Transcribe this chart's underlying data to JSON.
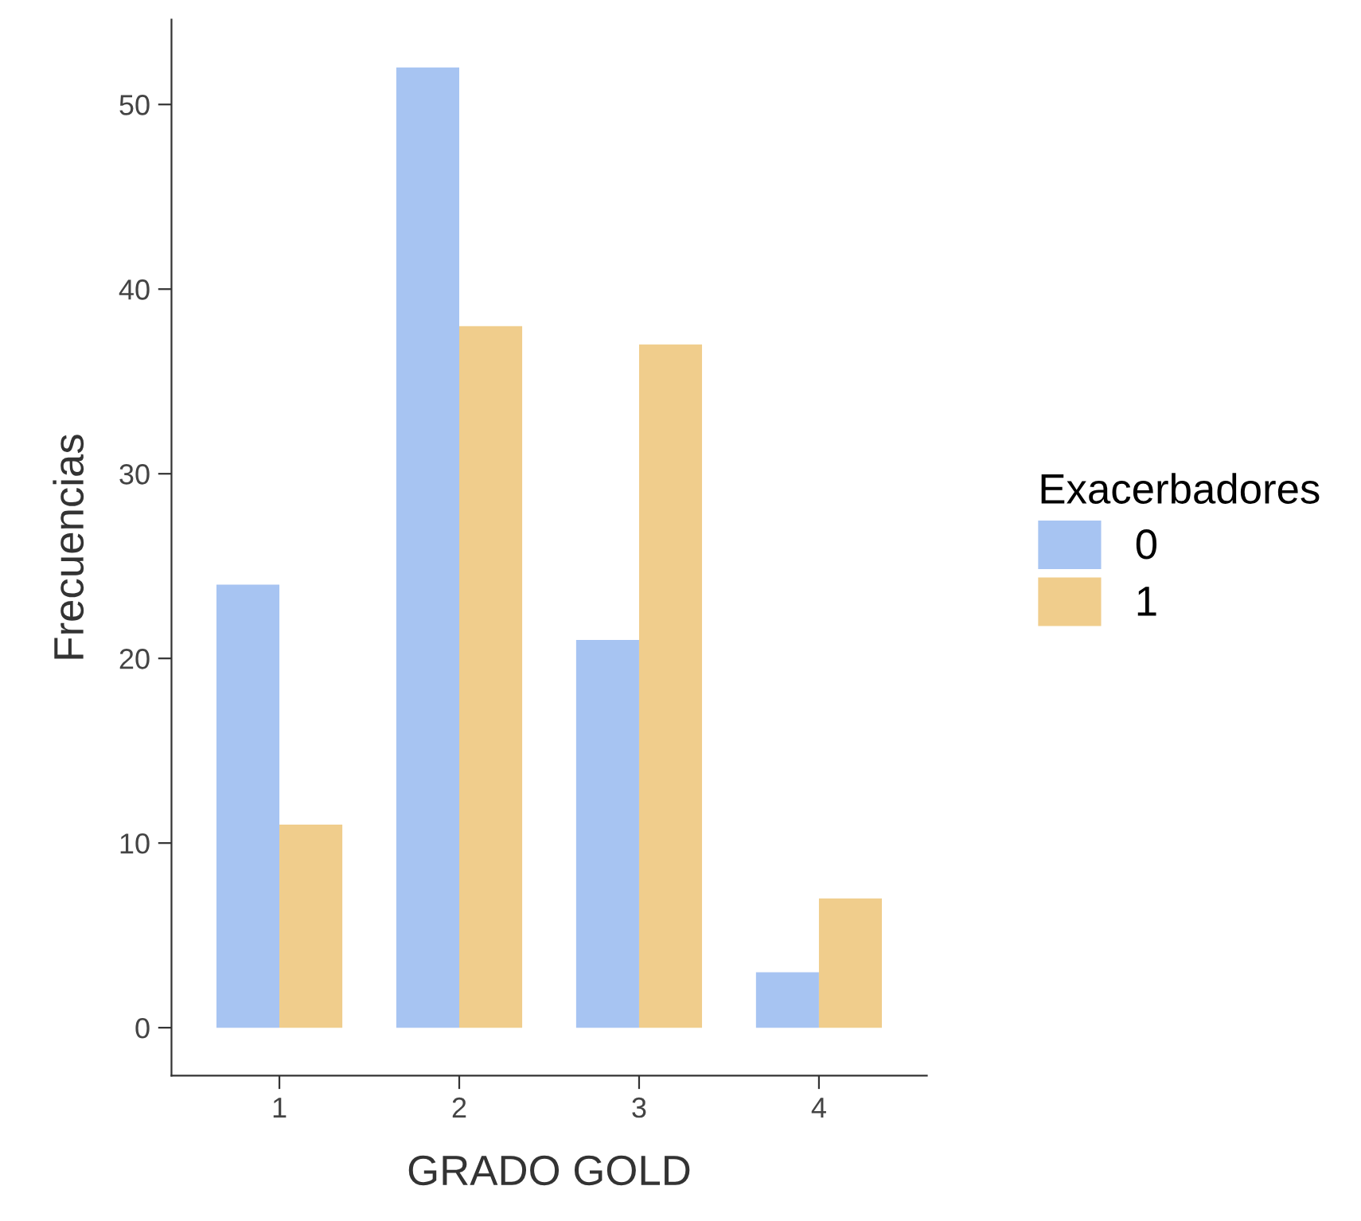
{
  "chart_data": {
    "type": "bar",
    "xlabel": "GRADO GOLD",
    "ylabel": "Frecuencias",
    "legend_title": "Exacerbadores",
    "categories": [
      "1",
      "2",
      "3",
      "4"
    ],
    "series": [
      {
        "name": "0",
        "color": "#a7c4f2",
        "values": [
          24,
          52,
          21,
          3
        ]
      },
      {
        "name": "1",
        "color": "#f0cd8c",
        "values": [
          11,
          38,
          37,
          7
        ]
      }
    ],
    "ylim": [
      -2.6,
      54.6
    ],
    "yticks": [
      0,
      10,
      20,
      30,
      40,
      50
    ],
    "grid": false,
    "legend": "right"
  }
}
